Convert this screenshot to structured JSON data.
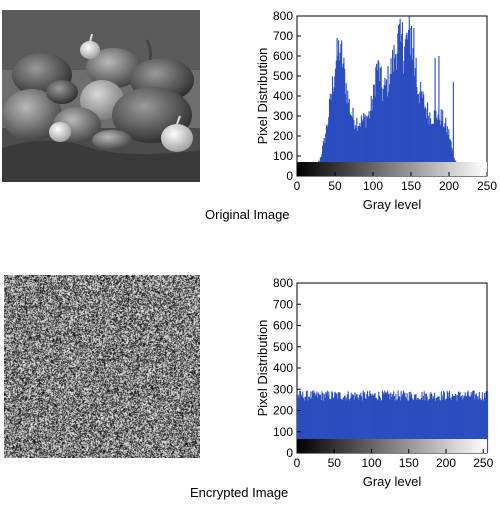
{
  "panels": [
    {
      "caption": "Original Image",
      "image": {
        "kind": "grayscale photo of bell peppers and garlic bulbs on a draped cloth"
      },
      "chart_data": {
        "type": "bar",
        "title": "",
        "xlabel": "Gray level",
        "ylabel": "Pixel Distribution",
        "xlim": [
          0,
          250
        ],
        "ylim": [
          0,
          800
        ],
        "xticks": [
          0,
          50,
          100,
          150,
          200,
          250
        ],
        "yticks": [
          0,
          100,
          200,
          300,
          400,
          500,
          600,
          700,
          800
        ],
        "bar_color": "#2a4dbf",
        "colorbar": "grayscale gradient black to white along x-axis",
        "profile": [
          [
            0,
            0
          ],
          [
            15,
            0
          ],
          [
            20,
            10
          ],
          [
            25,
            40
          ],
          [
            30,
            90
          ],
          [
            35,
            170
          ],
          [
            40,
            280
          ],
          [
            45,
            420
          ],
          [
            50,
            560
          ],
          [
            55,
            640
          ],
          [
            58,
            610
          ],
          [
            62,
            500
          ],
          [
            66,
            400
          ],
          [
            70,
            320
          ],
          [
            75,
            280
          ],
          [
            80,
            270
          ],
          [
            85,
            275
          ],
          [
            90,
            290
          ],
          [
            95,
            310
          ],
          [
            100,
            400
          ],
          [
            103,
            520
          ],
          [
            106,
            560
          ],
          [
            109,
            490
          ],
          [
            112,
            420
          ],
          [
            116,
            440
          ],
          [
            120,
            490
          ],
          [
            125,
            560
          ],
          [
            130,
            640
          ],
          [
            134,
            690
          ],
          [
            138,
            610
          ],
          [
            142,
            650
          ],
          [
            146,
            700
          ],
          [
            150,
            690
          ],
          [
            153,
            560
          ],
          [
            156,
            480
          ],
          [
            160,
            420
          ],
          [
            165,
            380
          ],
          [
            170,
            330
          ],
          [
            175,
            300
          ],
          [
            180,
            300
          ],
          [
            185,
            310
          ],
          [
            190,
            290
          ],
          [
            195,
            250
          ],
          [
            200,
            200
          ],
          [
            204,
            120
          ],
          [
            207,
            90
          ],
          [
            210,
            30
          ],
          [
            213,
            10
          ],
          [
            218,
            0
          ],
          [
            250,
            0
          ]
        ],
        "spikes": [
          [
            57,
            660
          ],
          [
            106,
            580
          ],
          [
            138,
            770
          ],
          [
            146,
            730
          ],
          [
            150,
            750
          ],
          [
            153,
            740
          ],
          [
            156,
            590
          ],
          [
            181,
            590
          ],
          [
            186,
            600
          ],
          [
            205,
            470
          ],
          [
            246,
            0
          ]
        ]
      }
    },
    {
      "caption": "Encrypted Image",
      "image": {
        "kind": "uniform random gray noise"
      },
      "chart_data": {
        "type": "bar",
        "title": "",
        "xlabel": "Gray level",
        "ylabel": "Pixel Distribution",
        "xlim": [
          0,
          255
        ],
        "ylim": [
          0,
          800
        ],
        "xticks": [
          0,
          50,
          100,
          150,
          200,
          250
        ],
        "yticks": [
          0,
          100,
          200,
          300,
          400,
          500,
          600,
          700,
          800
        ],
        "bar_color": "#2a4dbf",
        "colorbar": "grayscale gradient black to white along x-axis",
        "uniform_count": 256,
        "uniform_range": [
          245,
          295
        ]
      }
    }
  ]
}
